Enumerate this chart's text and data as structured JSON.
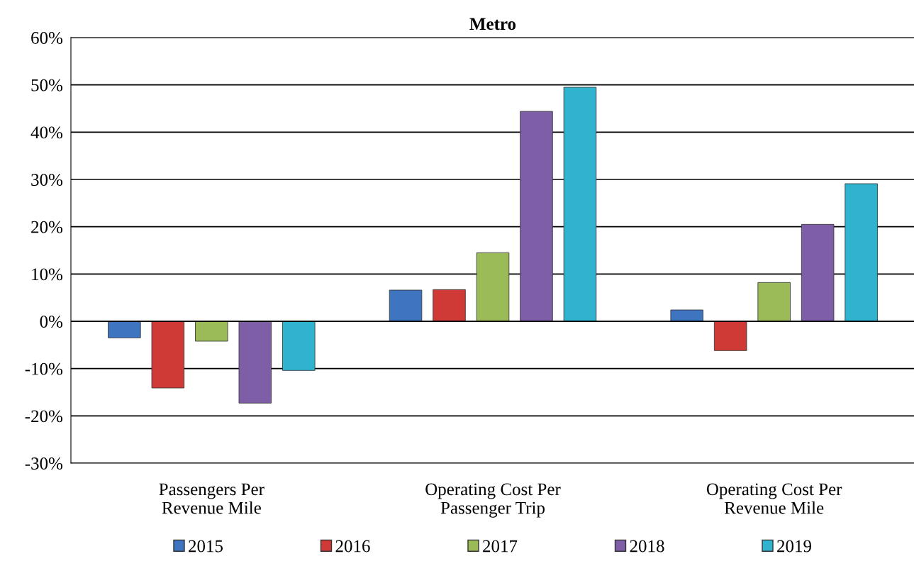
{
  "chart_data": {
    "type": "bar",
    "title": "Metro",
    "categories": [
      "Passengers Per\nRevenue Mile",
      "Operating Cost Per\nPassenger Trip",
      "Operating Cost Per\nRevenue Mile"
    ],
    "series": [
      {
        "name": "2015",
        "color": "#3f74c0",
        "values": [
          -3.5,
          6.6,
          2.4
        ]
      },
      {
        "name": "2016",
        "color": "#d03a36",
        "values": [
          -14.1,
          6.7,
          -6.2
        ]
      },
      {
        "name": "2017",
        "color": "#9bbb59",
        "values": [
          -4.2,
          14.5,
          8.2
        ]
      },
      {
        "name": "2018",
        "color": "#7f5ea8",
        "values": [
          -17.3,
          44.4,
          20.5
        ]
      },
      {
        "name": "2019",
        "color": "#2fb3cf",
        "values": [
          -10.4,
          49.5,
          29.1
        ]
      }
    ],
    "ylim": [
      -30,
      60
    ],
    "yticks": [
      {
        "value": -30,
        "label": "-30%"
      },
      {
        "value": -20,
        "label": "-20%"
      },
      {
        "value": -10,
        "label": "-10%"
      },
      {
        "value": 0,
        "label": "0%"
      },
      {
        "value": 10,
        "label": "10%"
      },
      {
        "value": 20,
        "label": "20%"
      },
      {
        "value": 30,
        "label": "30%"
      },
      {
        "value": 40,
        "label": "40%"
      },
      {
        "value": 50,
        "label": "50%"
      },
      {
        "value": 60,
        "label": "60%"
      }
    ],
    "grid": "y",
    "legend": "bottom"
  }
}
